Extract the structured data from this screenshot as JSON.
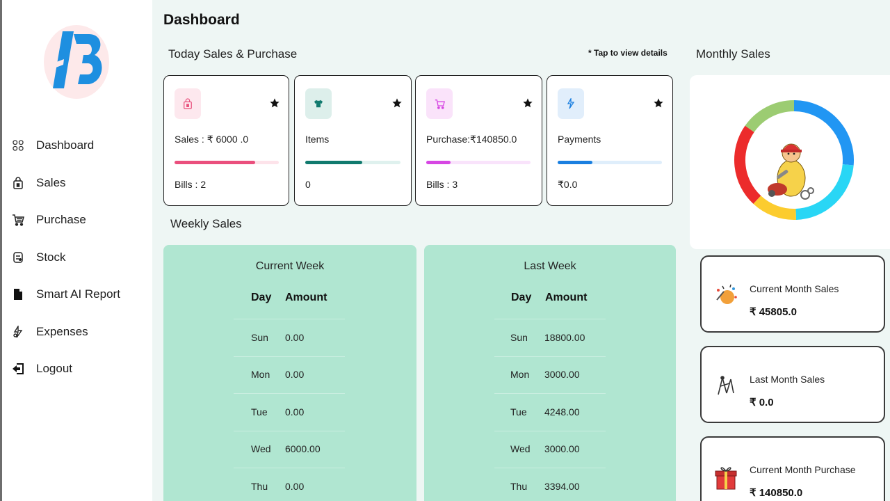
{
  "sidebar": {
    "items": [
      {
        "label": "Dashboard",
        "icon": "dashboard-grid-icon"
      },
      {
        "label": "Sales",
        "icon": "shopping-bag-icon"
      },
      {
        "label": "Purchase",
        "icon": "cart-icon"
      },
      {
        "label": "Stock",
        "icon": "stock-box-icon"
      },
      {
        "label": "Smart AI Report",
        "icon": "document-icon"
      },
      {
        "label": "Expenses",
        "icon": "expenses-icon"
      },
      {
        "label": "Logout",
        "icon": "logout-icon"
      }
    ]
  },
  "header": {
    "title": "Dashboard"
  },
  "today": {
    "title": "Today Sales & Purchase",
    "hint": "* Tap to view details",
    "cards": [
      {
        "label": "Sales : ₹ 6000 .0",
        "sub": "Bills : 2",
        "progress": 0.77,
        "fill_color": "#ea4f7d",
        "track_color": "#fde3ea",
        "icon_bg": "#fde8ee",
        "icon": "shopping-bag-icon"
      },
      {
        "label": "Items",
        "sub": "0",
        "progress": 0.6,
        "fill_color": "#117a6e",
        "track_color": "#dff1ee",
        "icon_bg": "#ddefeb",
        "icon": "shirt-icon"
      },
      {
        "label": "Purchase:₹140850.0",
        "sub": "Bills : 3",
        "progress": 0.23,
        "fill_color": "#d646e3",
        "track_color": "#f9e3fb",
        "icon_bg": "#fae3fa",
        "icon": "cart-icon"
      },
      {
        "label": "Payments",
        "sub": "₹0.0",
        "progress": 0.33,
        "fill_color": "#1a7fe0",
        "track_color": "#dfeefb",
        "icon_bg": "#e1eefb",
        "icon": "payment-icon"
      }
    ]
  },
  "weekly": {
    "title": "Weekly Sales",
    "day_header": "Day",
    "amount_header": "Amount",
    "current": {
      "title": "Current Week",
      "rows": [
        {
          "day": "Sun",
          "amount": "0.00"
        },
        {
          "day": "Mon",
          "amount": "0.00"
        },
        {
          "day": "Tue",
          "amount": "0.00"
        },
        {
          "day": "Wed",
          "amount": "6000.00"
        },
        {
          "day": "Thu",
          "amount": "0.00"
        }
      ]
    },
    "last": {
      "title": "Last Week",
      "rows": [
        {
          "day": "Sun",
          "amount": "18800.00"
        },
        {
          "day": "Mon",
          "amount": "3000.00"
        },
        {
          "day": "Tue",
          "amount": "4248.00"
        },
        {
          "day": "Wed",
          "amount": "3000.00"
        },
        {
          "day": "Thu",
          "amount": "3394.00"
        }
      ]
    }
  },
  "monthly": {
    "title": "Monthly Sales",
    "donut_colors": [
      "#2196f3",
      "#29d6f5",
      "#fccc2e",
      "#ec2b2b",
      "#9ccc72"
    ],
    "cards": [
      {
        "label": "Current Month Sales",
        "value": "₹ 45805.0",
        "icon": "sales-celebration-icon"
      },
      {
        "label": "Last Month Sales",
        "value": "₹ 0.0",
        "icon": "chart-trend-icon"
      },
      {
        "label": "Current Month Purchase",
        "value": "₹ 140850.0",
        "icon": "gift-purchase-icon"
      }
    ]
  }
}
